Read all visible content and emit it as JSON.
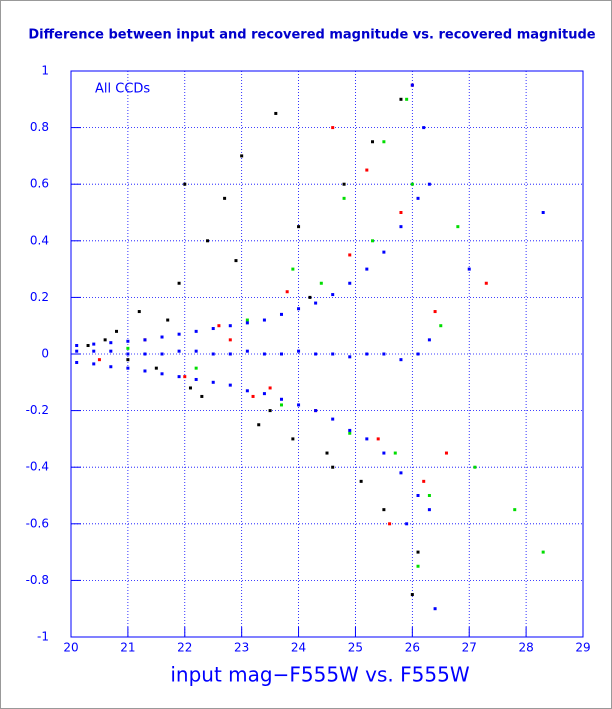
{
  "chart_data": {
    "type": "scatter",
    "title": "Difference between input and recovered magnitude vs. recovered magnitude",
    "annotation": "All CCDs",
    "x_label": "input mag−F555W vs. F555W",
    "xlim": [
      20,
      29
    ],
    "xticks": [
      20,
      21,
      22,
      23,
      24,
      25,
      26,
      27,
      28,
      29
    ],
    "ylim": [
      -1,
      1
    ],
    "yticks": [
      -1,
      -0.8,
      -0.6,
      -0.4,
      -0.2,
      0,
      0.2,
      0.4,
      0.6,
      0.8,
      1
    ],
    "grid": true,
    "axis_color": "#0000ff",
    "series": [
      {
        "color": "#000000",
        "x": [
          20.3,
          20.8,
          21.2,
          21.5,
          21.9,
          22.1,
          22.4,
          22.7,
          23.0,
          23.3,
          23.6,
          23.9,
          24.2,
          24.5,
          24.8,
          25.1,
          25.5,
          25.8,
          26.1,
          21.0,
          21.7,
          22.3,
          22.9,
          23.5,
          24.0,
          24.6,
          25.3,
          26.0,
          20.6,
          22.0
        ],
        "values": [
          0.03,
          0.08,
          0.15,
          -0.05,
          0.25,
          -0.12,
          0.4,
          0.55,
          0.7,
          -0.25,
          0.85,
          -0.3,
          0.2,
          -0.35,
          0.6,
          -0.45,
          -0.55,
          0.9,
          -0.7,
          -0.02,
          0.12,
          -0.15,
          0.33,
          -0.2,
          0.45,
          -0.4,
          0.75,
          -0.85,
          0.05,
          0.6
        ]
      },
      {
        "color": "#ff0000",
        "x": [
          20.5,
          21.3,
          22.0,
          22.6,
          23.2,
          23.8,
          24.3,
          24.9,
          25.4,
          25.8,
          26.2,
          26.4,
          24.6,
          25.6,
          26.0,
          23.5,
          22.8,
          26.6,
          27.3,
          25.2
        ],
        "values": [
          -0.02,
          0.05,
          -0.08,
          0.1,
          -0.15,
          0.22,
          -0.2,
          0.35,
          -0.3,
          0.5,
          -0.45,
          0.15,
          0.8,
          -0.6,
          0.95,
          -0.12,
          0.05,
          -0.35,
          0.25,
          0.65
        ]
      },
      {
        "color": "#00dd00",
        "x": [
          21.0,
          22.2,
          23.1,
          23.7,
          24.4,
          24.9,
          25.3,
          25.7,
          26.0,
          26.3,
          26.5,
          27.1,
          27.8,
          24.8,
          25.5,
          26.1,
          23.9,
          26.8,
          25.9,
          28.3
        ],
        "values": [
          0.02,
          -0.05,
          0.12,
          -0.18,
          0.25,
          -0.28,
          0.4,
          -0.35,
          0.6,
          -0.5,
          0.1,
          -0.4,
          -0.55,
          0.55,
          0.75,
          -0.75,
          0.3,
          0.45,
          0.9,
          -0.7
        ]
      },
      {
        "color": "#0000ff",
        "x": [
          20.1,
          20.4,
          20.7,
          21.0,
          21.3,
          21.6,
          21.9,
          22.2,
          22.5,
          22.8,
          23.1,
          23.4,
          23.7,
          24.0,
          24.3,
          24.6,
          24.9,
          25.2,
          25.5,
          25.8,
          26.1,
          26.3,
          20.1,
          20.4,
          20.7,
          21.0,
          21.3,
          21.6,
          21.9,
          22.2,
          22.5,
          22.8,
          23.1,
          23.4,
          23.7,
          24.0,
          24.3,
          24.6,
          24.9,
          25.2,
          25.5,
          25.8,
          26.1,
          26.3,
          20.1,
          20.4,
          20.7,
          21.0,
          21.3,
          21.6,
          21.9,
          22.2,
          22.5,
          22.8,
          23.1,
          23.4,
          23.7,
          24.0,
          24.3,
          24.6,
          24.9,
          25.2,
          25.5,
          25.8,
          26.1,
          26.3,
          26.2,
          26.0,
          25.9,
          26.4,
          27.0,
          28.3
        ],
        "values": [
          0.01,
          0.01,
          0.01,
          0.0,
          0.0,
          0.0,
          0.01,
          0.01,
          0.0,
          0.0,
          0.01,
          0.0,
          0.0,
          0.01,
          0.0,
          0.0,
          -0.01,
          0.0,
          0.0,
          -0.02,
          0.0,
          0.05,
          0.03,
          0.035,
          0.04,
          0.045,
          0.05,
          0.06,
          0.07,
          0.08,
          0.09,
          0.1,
          0.11,
          0.12,
          0.14,
          0.16,
          0.18,
          0.21,
          0.25,
          0.3,
          0.36,
          0.45,
          0.55,
          0.6,
          -0.03,
          -0.035,
          -0.045,
          -0.05,
          -0.06,
          -0.07,
          -0.08,
          -0.09,
          -0.1,
          -0.11,
          -0.13,
          -0.14,
          -0.16,
          -0.18,
          -0.2,
          -0.23,
          -0.27,
          -0.3,
          -0.35,
          -0.42,
          -0.5,
          -0.55,
          0.8,
          0.95,
          -0.6,
          -0.9,
          0.3,
          0.5
        ]
      }
    ]
  }
}
